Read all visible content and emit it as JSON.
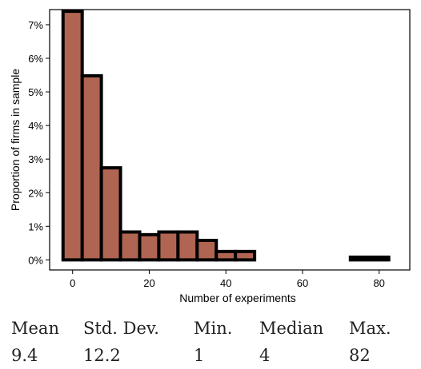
{
  "chart_data": {
    "type": "bar",
    "xlabel": "Number of experiments",
    "ylabel": "Proportion of firms in sample",
    "xlim": [
      -6,
      88
    ],
    "ylim": [
      -0.003,
      0.0745
    ],
    "x_ticks": [
      0,
      20,
      40,
      60,
      80
    ],
    "x_tick_labels": [
      "0",
      "20",
      "40",
      "60",
      "80"
    ],
    "y_ticks": [
      0,
      0.01,
      0.02,
      0.03,
      0.04,
      0.05,
      0.06,
      0.07
    ],
    "y_tick_labels": [
      "0%",
      "1%",
      "2%",
      "3%",
      "4%",
      "5%",
      "6%",
      "7%"
    ],
    "bar_color": "#b06552",
    "bins": [
      {
        "x0": -2.5,
        "x1": 2.5,
        "value": 0.074
      },
      {
        "x0": 2.5,
        "x1": 7.5,
        "value": 0.0548
      },
      {
        "x0": 7.5,
        "x1": 12.5,
        "value": 0.0274
      },
      {
        "x0": 12.5,
        "x1": 17.5,
        "value": 0.0083
      },
      {
        "x0": 17.5,
        "x1": 22.5,
        "value": 0.0075
      },
      {
        "x0": 22.5,
        "x1": 27.5,
        "value": 0.0083
      },
      {
        "x0": 27.5,
        "x1": 32.5,
        "value": 0.0083
      },
      {
        "x0": 32.5,
        "x1": 37.5,
        "value": 0.0058
      },
      {
        "x0": 37.5,
        "x1": 42.5,
        "value": 0.0025
      },
      {
        "x0": 42.5,
        "x1": 47.5,
        "value": 0.0025
      },
      {
        "x0": 72.5,
        "x1": 82.5,
        "value": 0.0008
      }
    ]
  },
  "stats": [
    {
      "label": "Mean",
      "value": "9.4"
    },
    {
      "label": "Std. Dev.",
      "value": "12.2"
    },
    {
      "label": "Min.",
      "value": "1"
    },
    {
      "label": "Median",
      "value": "4"
    },
    {
      "label": "Max.",
      "value": "82"
    }
  ]
}
